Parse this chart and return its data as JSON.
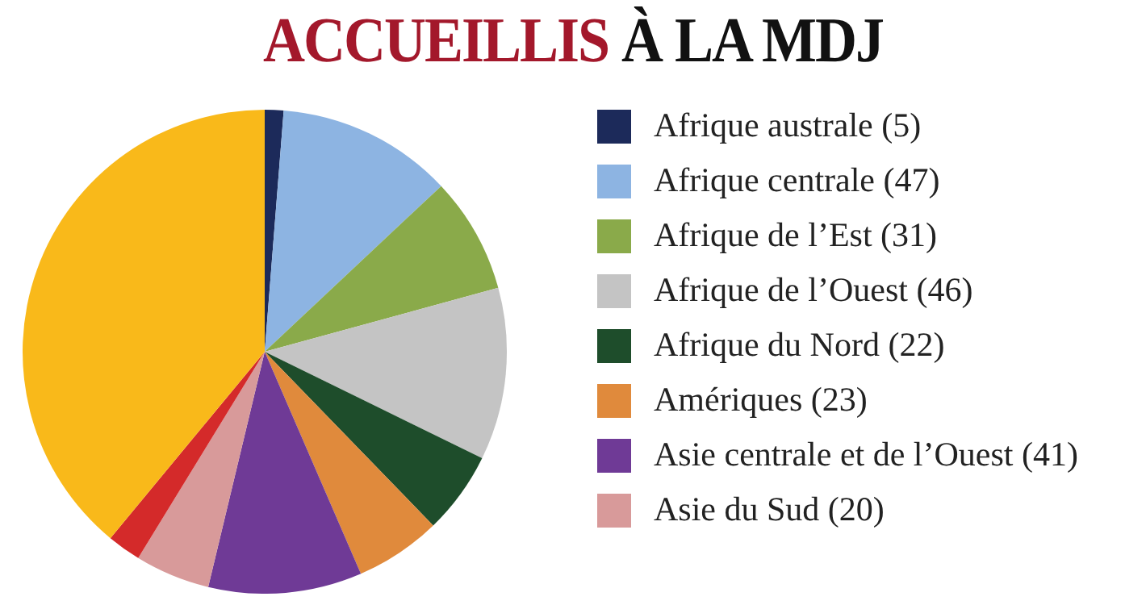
{
  "chart_data": {
    "type": "pie",
    "title": "ACCUEILLIS À LA MDJ",
    "categories": [
      "Afrique australe (5)",
      "Afrique centrale (47)",
      "Afrique de l’Est (31)",
      "Afrique de l’Ouest (46)",
      "Afrique du Nord (22)",
      "Amériques (23)",
      "Asie centrale et de l’Ouest (41)",
      "Asie du Sud (20)",
      null,
      null
    ],
    "values": [
      5,
      47,
      31,
      46,
      22,
      23,
      41,
      20,
      9,
      156
    ],
    "colors": [
      "#1c2a5a",
      "#8db4e2",
      "#8aaa4a",
      "#c4c4c4",
      "#1e4d2b",
      "#e08a3c",
      "#6f3a96",
      "#d89a9a",
      "#d42a2a",
      "#f9b91a"
    ],
    "legend": "right"
  }
}
